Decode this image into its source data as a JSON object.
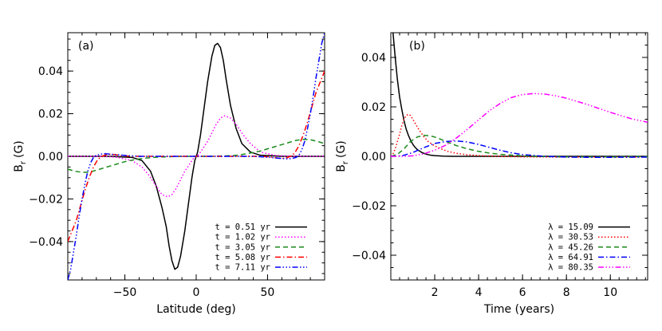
{
  "chart_data": [
    {
      "type": "line",
      "panel_label": "(a)",
      "xlabel": "Latitude (deg)",
      "ylabel_main": "B",
      "ylabel_sub": "r",
      "ylabel_unit": "(G)",
      "xlim": [
        -90,
        90
      ],
      "ylim": [
        -0.058,
        0.058
      ],
      "xticks": [
        -50,
        0,
        50
      ],
      "yticks": [
        -0.04,
        -0.02,
        0.0,
        0.02,
        0.04
      ],
      "ytick_labels": [
        "−0.04",
        "−0.02",
        "0.00",
        "0.02",
        "0.04"
      ],
      "xtick_labels": [
        "−50",
        "0",
        "50"
      ],
      "grid": false,
      "legend_position": "bottom-right",
      "series": [
        {
          "name": "t = 0.51 yr",
          "color": "#000000",
          "dash": "solid",
          "x": [
            -90,
            -60,
            -45,
            -38,
            -32,
            -28,
            -24,
            -21,
            -19,
            -17,
            -15,
            -13,
            -11,
            -8,
            -5,
            -3,
            -1,
            1,
            3,
            5,
            8,
            11,
            13,
            15,
            17,
            19,
            21,
            24,
            28,
            32,
            38,
            45,
            60,
            90
          ],
          "y": [
            0,
            0,
            -0.0005,
            -0.002,
            -0.007,
            -0.014,
            -0.024,
            -0.033,
            -0.042,
            -0.049,
            -0.053,
            -0.052,
            -0.047,
            -0.035,
            -0.02,
            -0.01,
            -0.002,
            0.002,
            0.01,
            0.02,
            0.035,
            0.047,
            0.052,
            0.053,
            0.051,
            0.045,
            0.036,
            0.024,
            0.013,
            0.006,
            0.002,
            0.0005,
            0,
            0
          ]
        },
        {
          "name": "t = 1.02 yr",
          "color": "#ff00ff",
          "dash": "dot",
          "x": [
            -90,
            -65,
            -55,
            -45,
            -38,
            -33,
            -28,
            -24,
            -20,
            -17,
            -14,
            -11,
            -8,
            -5,
            -2,
            0,
            2,
            5,
            8,
            11,
            14,
            17,
            20,
            24,
            28,
            33,
            38,
            45,
            55,
            65,
            90
          ],
          "y": [
            0,
            0,
            -0.0005,
            -0.002,
            -0.005,
            -0.009,
            -0.014,
            -0.018,
            -0.019,
            -0.018,
            -0.015,
            -0.011,
            -0.007,
            -0.004,
            -0.001,
            0,
            0.001,
            0.004,
            0.007,
            0.011,
            0.015,
            0.018,
            0.019,
            0.018,
            0.015,
            0.01,
            0.006,
            0.002,
            0.0005,
            0,
            0
          ]
        },
        {
          "name": "t = 3.05 yr",
          "color": "#1a8a1a",
          "dash": "dash",
          "x": [
            -90,
            -85,
            -80,
            -75,
            -70,
            -65,
            -60,
            -55,
            -50,
            -45,
            -40,
            -35,
            -30,
            -25,
            -20,
            -15,
            -10,
            -5,
            0,
            5,
            10,
            15,
            20,
            25,
            30,
            35,
            40,
            45,
            50,
            55,
            60,
            65,
            70,
            75,
            80,
            85,
            90
          ],
          "y": [
            -0.006,
            -0.007,
            -0.0075,
            -0.0075,
            -0.0065,
            -0.0055,
            -0.0045,
            -0.0035,
            -0.0025,
            -0.0018,
            -0.0012,
            -0.0008,
            -0.0005,
            -0.0003,
            -0.0002,
            -0.0001,
            0,
            0,
            0,
            0,
            0,
            0.0001,
            0.0002,
            0.0003,
            0.0006,
            0.0012,
            0.0018,
            0.0025,
            0.0035,
            0.0045,
            0.0055,
            0.0065,
            0.0075,
            0.008,
            0.0078,
            0.007,
            0.006
          ]
        },
        {
          "name": "t = 5.08 yr",
          "color": "#ff0000",
          "dash": "dashdot",
          "x": [
            -90,
            -87,
            -84,
            -81,
            -78,
            -75,
            -72,
            -69,
            -66,
            -63,
            -60,
            -57,
            -54,
            -50,
            -45,
            -40,
            -30,
            0,
            30,
            40,
            45,
            50,
            54,
            57,
            60,
            63,
            66,
            69,
            72,
            75,
            78,
            81,
            84,
            87,
            90
          ],
          "y": [
            -0.04,
            -0.035,
            -0.03,
            -0.023,
            -0.016,
            -0.01,
            -0.005,
            -0.0015,
            0,
            0.0008,
            0.001,
            0.0008,
            0.0005,
            0.0002,
            0,
            0,
            0,
            0,
            0,
            0,
            0,
            -0.0002,
            -0.0005,
            -0.0008,
            -0.001,
            -0.0008,
            0,
            0.0015,
            0.005,
            0.01,
            0.016,
            0.023,
            0.03,
            0.035,
            0.04
          ]
        },
        {
          "name": "t = 7.11 yr",
          "color": "#0000ff",
          "dash": "dashdotdotdot",
          "x": [
            -90,
            -88,
            -86,
            -84,
            -82,
            -80,
            -78,
            -76,
            -74,
            -72,
            -70,
            -67,
            -64,
            -60,
            -55,
            -50,
            -45,
            -40,
            -30,
            0,
            30,
            40,
            45,
            50,
            55,
            60,
            64,
            67,
            70,
            72,
            74,
            76,
            78,
            80,
            82,
            84,
            86,
            88,
            90
          ],
          "y": [
            -0.058,
            -0.053,
            -0.045,
            -0.037,
            -0.028,
            -0.02,
            -0.013,
            -0.007,
            -0.003,
            -0.0005,
            0.0005,
            0.001,
            0.0012,
            0.001,
            0.0007,
            0.0004,
            0.0002,
            0,
            0,
            0,
            0,
            0,
            -0.0002,
            -0.0004,
            -0.0007,
            -0.001,
            -0.0012,
            -0.001,
            -0.0005,
            0.0005,
            0.003,
            0.007,
            0.013,
            0.02,
            0.028,
            0.037,
            0.045,
            0.053,
            0.058
          ]
        }
      ]
    },
    {
      "type": "line",
      "panel_label": "(b)",
      "xlabel": "Time (years)",
      "ylabel_main": "B",
      "ylabel_sub": "r",
      "ylabel_unit": "(G)",
      "xlim": [
        0,
        11.7
      ],
      "ylim": [
        -0.05,
        0.05
      ],
      "xticks": [
        2,
        4,
        6,
        8,
        10
      ],
      "yticks": [
        -0.04,
        -0.02,
        0.0,
        0.02,
        0.04
      ],
      "ytick_labels": [
        "−0.04",
        "−0.02",
        "0.00",
        "0.02",
        "0.04"
      ],
      "xtick_labels": [
        "2",
        "4",
        "6",
        "8",
        "10"
      ],
      "grid": false,
      "legend_position": "bottom-right",
      "series": [
        {
          "name": "λ = 15.09",
          "color": "#000000",
          "dash": "solid",
          "x": [
            0.1,
            0.2,
            0.3,
            0.4,
            0.5,
            0.6,
            0.7,
            0.8,
            0.9,
            1.0,
            1.1,
            1.2,
            1.4,
            1.6,
            1.8,
            2.0,
            2.4,
            2.8,
            3.5,
            4.5,
            6,
            8,
            10,
            11.7
          ],
          "y": [
            0.05,
            0.04,
            0.031,
            0.024,
            0.019,
            0.0145,
            0.011,
            0.0085,
            0.0065,
            0.0049,
            0.0037,
            0.0028,
            0.0016,
            0.0009,
            0.0005,
            0.0003,
            0.0001,
            0,
            0,
            0,
            0,
            0,
            0,
            0
          ]
        },
        {
          "name": "λ = 30.53",
          "color": "#ff0000",
          "dash": "dot",
          "x": [
            0,
            0.1,
            0.2,
            0.3,
            0.4,
            0.5,
            0.6,
            0.7,
            0.8,
            0.9,
            1.0,
            1.1,
            1.3,
            1.5,
            1.7,
            2.0,
            2.3,
            2.6,
            3.0,
            3.5,
            4.0,
            5.0,
            6.0,
            8,
            10,
            11.7
          ],
          "y": [
            0,
            0.001,
            0.003,
            0.006,
            0.009,
            0.0125,
            0.015,
            0.0165,
            0.017,
            0.0165,
            0.015,
            0.0135,
            0.0105,
            0.008,
            0.006,
            0.0042,
            0.003,
            0.002,
            0.0012,
            0.0006,
            0.0003,
            0,
            -0.0002,
            -0.0003,
            -0.0003,
            -0.0003
          ]
        },
        {
          "name": "λ = 45.26",
          "color": "#1a8a1a",
          "dash": "dash",
          "x": [
            0,
            0.3,
            0.6,
            0.9,
            1.2,
            1.5,
            1.8,
            2.0,
            2.3,
            2.6,
            3.0,
            3.5,
            4.0,
            4.5,
            5.0,
            6.0,
            7.0,
            8.0,
            10,
            11.7
          ],
          "y": [
            0,
            0.0008,
            0.003,
            0.006,
            0.0078,
            0.0085,
            0.0083,
            0.0078,
            0.0068,
            0.0057,
            0.0043,
            0.003,
            0.002,
            0.0013,
            0.0008,
            0.0002,
            -0.0001,
            -0.0002,
            -0.0002,
            -0.0001
          ]
        },
        {
          "name": "λ = 64.91",
          "color": "#0000ff",
          "dash": "dashdot",
          "x": [
            0,
            0.5,
            1.0,
            1.5,
            2.0,
            2.5,
            3.0,
            3.5,
            4.0,
            4.5,
            5.0,
            5.5,
            6.0,
            7.0,
            8.0,
            9.0,
            10,
            11.7
          ],
          "y": [
            0,
            0.0002,
            0.0015,
            0.0035,
            0.0052,
            0.006,
            0.0062,
            0.0058,
            0.0048,
            0.0036,
            0.0024,
            0.0014,
            0.0007,
            0,
            -0.0003,
            -0.0004,
            -0.0004,
            -0.0003
          ]
        },
        {
          "name": "λ = 80.35",
          "color": "#ff00ff",
          "dash": "dashdotdotdot",
          "x": [
            0,
            0.5,
            1.0,
            1.5,
            2.0,
            2.5,
            3.0,
            3.5,
            4.0,
            4.5,
            5.0,
            5.5,
            6.0,
            6.5,
            7.0,
            7.5,
            8.0,
            8.5,
            9.0,
            9.5,
            10.0,
            10.5,
            11.0,
            11.7
          ],
          "y": [
            0,
            0,
            0.0002,
            0.001,
            0.0025,
            0.0045,
            0.0075,
            0.011,
            0.0148,
            0.0185,
            0.0215,
            0.0238,
            0.025,
            0.0254,
            0.0252,
            0.0245,
            0.0235,
            0.0222,
            0.0208,
            0.0193,
            0.0178,
            0.0164,
            0.0151,
            0.0138
          ]
        }
      ]
    }
  ]
}
